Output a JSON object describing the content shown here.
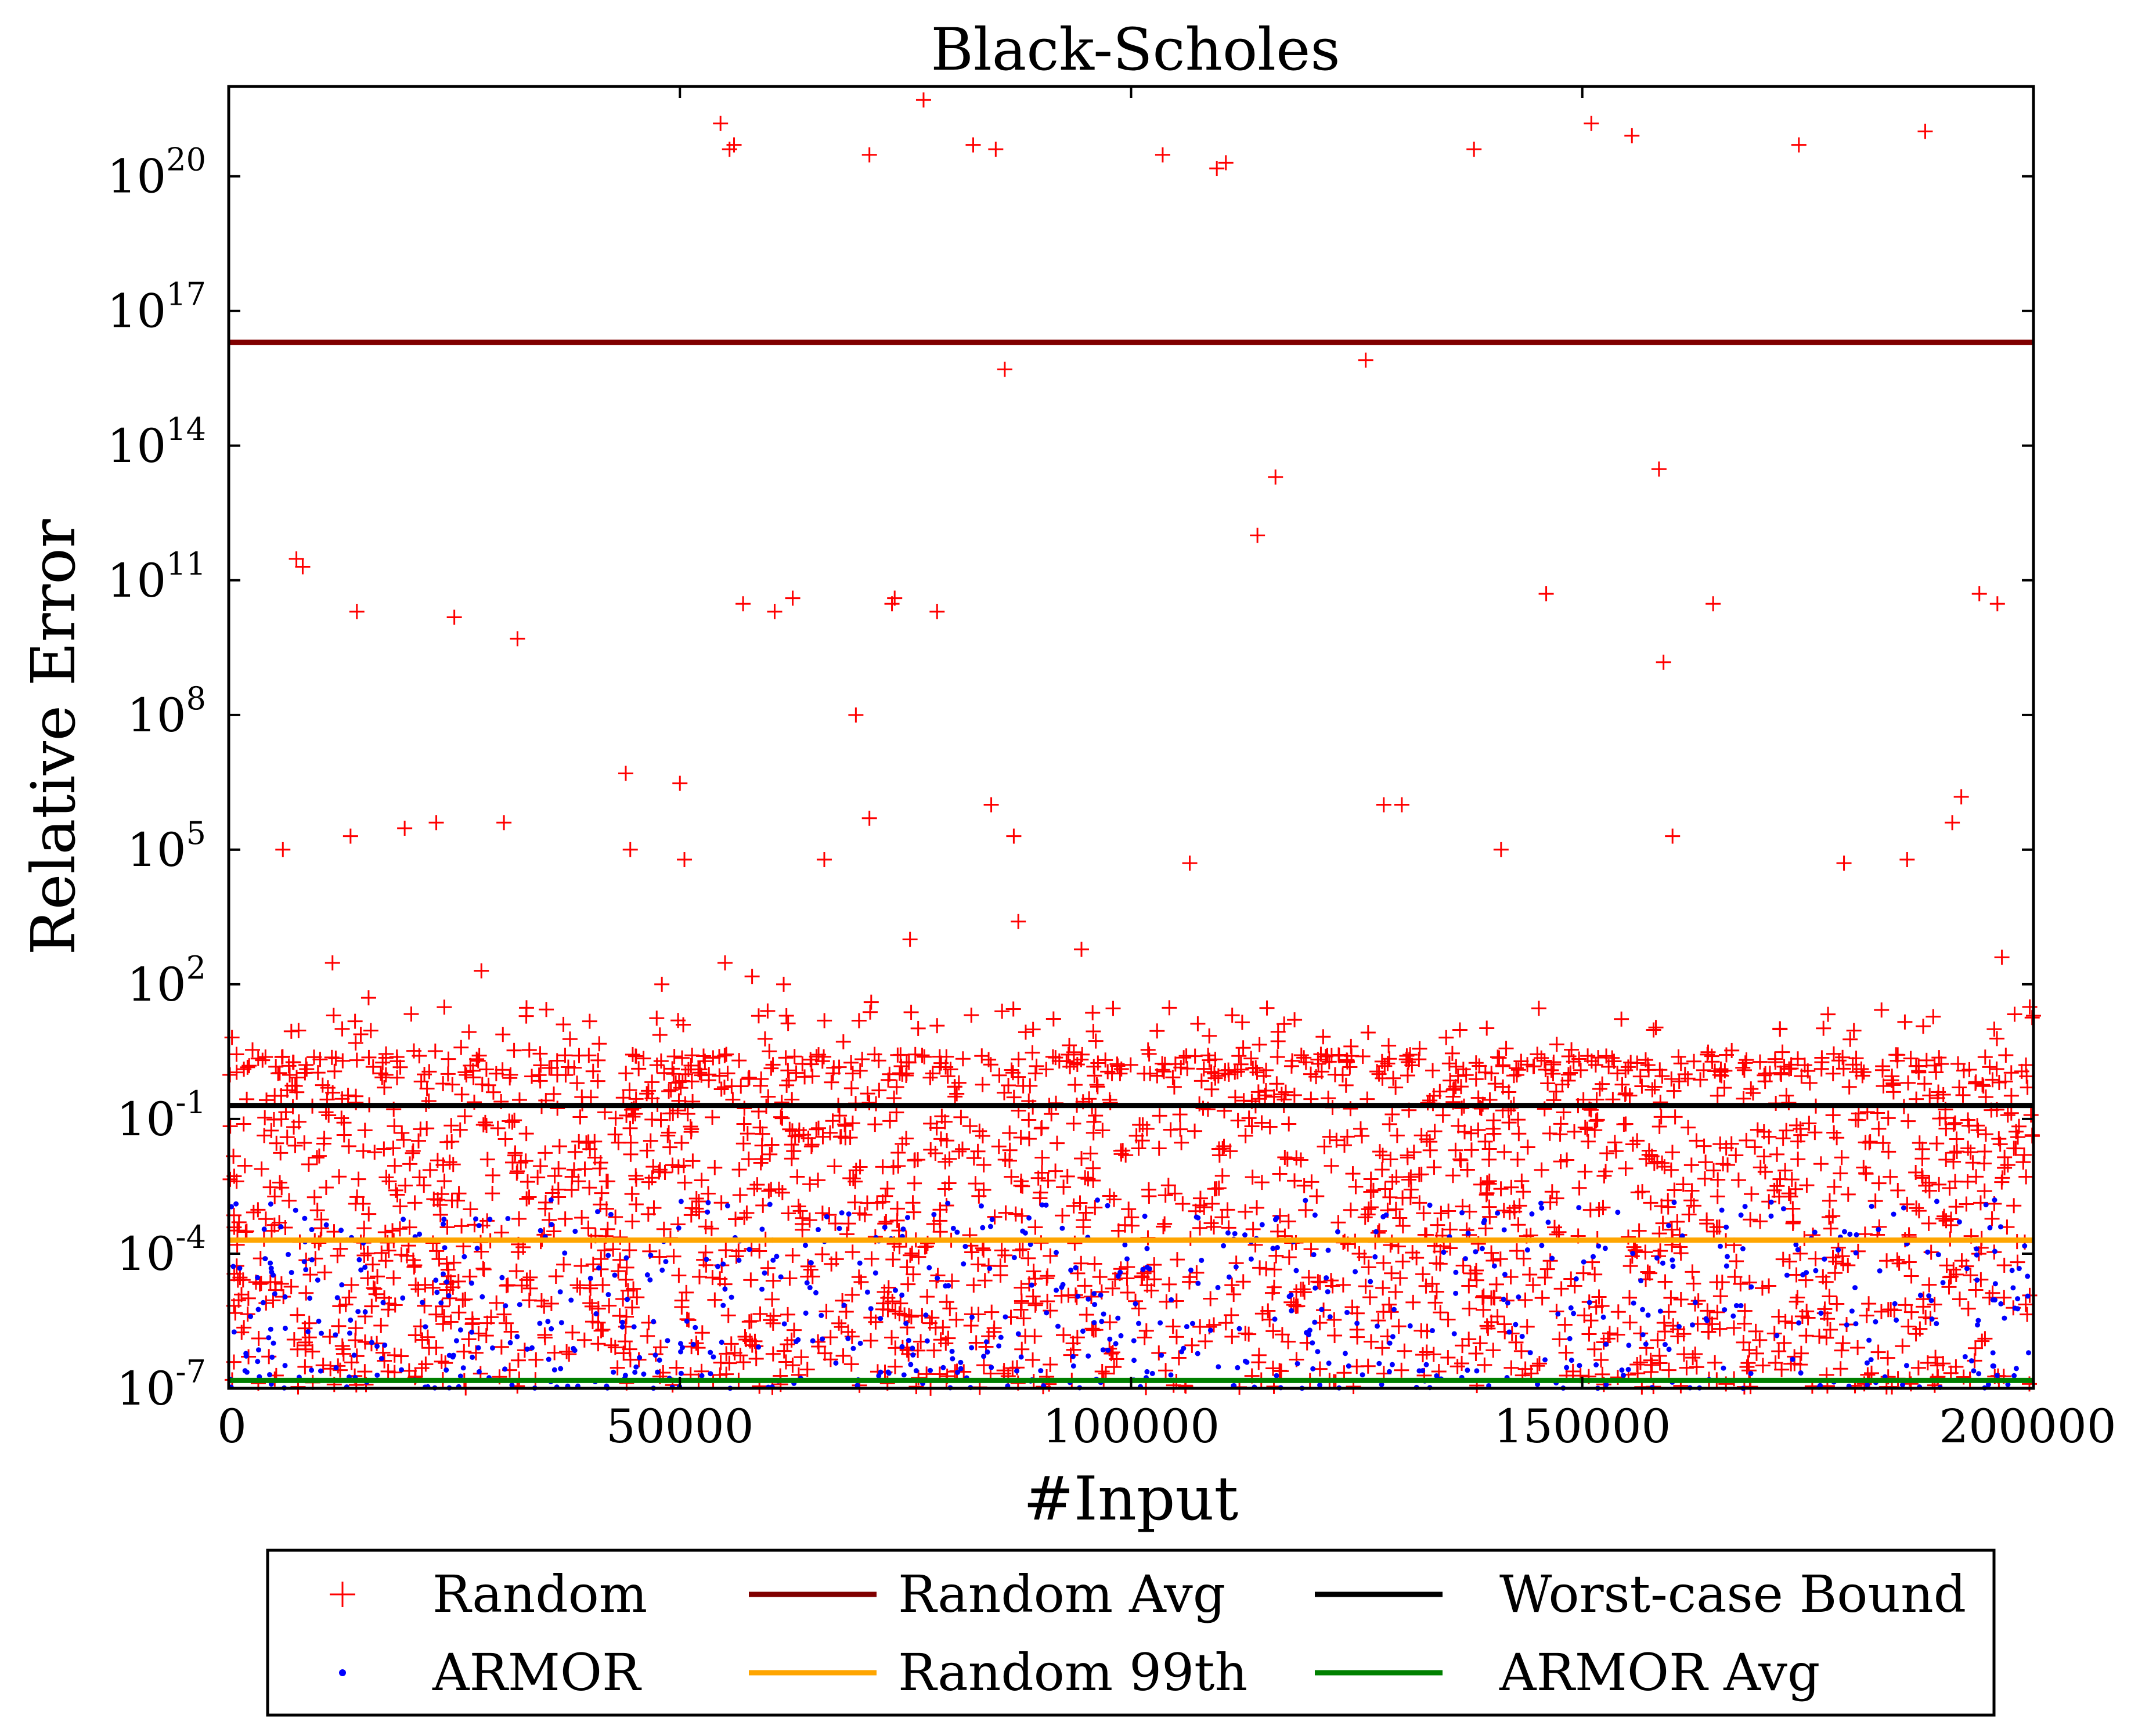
{
  "chart_data": {
    "type": "scatter",
    "title": "Black-Scholes",
    "xlabel": "#Input",
    "ylabel": "Relative Error",
    "y_scale": "log",
    "xlim": [
      0,
      200000
    ],
    "ylim_exponent": [
      -7,
      22
    ],
    "x_ticks": [
      {
        "value": 0,
        "label": "0"
      },
      {
        "value": 50000,
        "label": "50000"
      },
      {
        "value": 100000,
        "label": "100000"
      },
      {
        "value": 150000,
        "label": "150000"
      },
      {
        "value": 200000,
        "label": "200000"
      }
    ],
    "y_ticks": [
      {
        "exponent": -7,
        "base": "10",
        "exp": "-7"
      },
      {
        "exponent": -4,
        "base": "10",
        "exp": "-4"
      },
      {
        "exponent": -1,
        "base": "10",
        "exp": "-1"
      },
      {
        "exponent": 2,
        "base": "10",
        "exp": "2"
      },
      {
        "exponent": 5,
        "base": "10",
        "exp": "5"
      },
      {
        "exponent": 8,
        "base": "10",
        "exp": "8"
      },
      {
        "exponent": 11,
        "base": "10",
        "exp": "11"
      },
      {
        "exponent": 14,
        "base": "10",
        "exp": "14"
      },
      {
        "exponent": 17,
        "base": "10",
        "exp": "17"
      },
      {
        "exponent": 20,
        "base": "10",
        "exp": "20"
      }
    ],
    "grid": false,
    "legend_position": "bottom, outside plot, 3 columns",
    "hlines": [
      {
        "name": "Random Avg",
        "y": 2e+16,
        "color": "#800000"
      },
      {
        "name": "Random 99th",
        "y": 0.0002,
        "color": "#ffa500"
      },
      {
        "name": "Worst-case Bound",
        "y": 0.2,
        "color": "#000000"
      },
      {
        "name": "ARMOR Avg",
        "y": 1.5e-07,
        "color": "#008000"
      }
    ],
    "series": [
      {
        "name": "Random",
        "marker": "+",
        "color": "#ff0000",
        "note": "200000 inputs; dense band from 1e-7 to 1e1, shelf at about 1",
        "outliers": [
          [
            6000,
            100000.0
          ],
          [
            7500,
            300000000000.0
          ],
          [
            8200,
            200000000000.0
          ],
          [
            11500,
            300
          ],
          [
            13500,
            200000.0
          ],
          [
            14000,
            15
          ],
          [
            14200,
            20000000000.0
          ],
          [
            15500,
            50
          ],
          [
            19500,
            300000.0
          ],
          [
            23000,
            400000.0
          ],
          [
            25000,
            15000000000.0
          ],
          [
            28000,
            200
          ],
          [
            30500,
            400000.0
          ],
          [
            32000,
            5000000000.0
          ],
          [
            33000,
            30
          ],
          [
            40000,
            15
          ],
          [
            44000,
            5000000.0
          ],
          [
            44500,
            100000.0
          ],
          [
            48000,
            100
          ],
          [
            50000,
            3000000.0
          ],
          [
            50500,
            60000.0
          ],
          [
            54500,
            1.5e+21
          ],
          [
            55000,
            300
          ],
          [
            55500,
            4e+20
          ],
          [
            56000,
            5e+20
          ],
          [
            57000,
            30000000000.0
          ],
          [
            58000,
            150
          ],
          [
            60500,
            20000000000.0
          ],
          [
            61500,
            100
          ],
          [
            61800,
            20
          ],
          [
            62500,
            40000000000.0
          ],
          [
            66000,
            60000.0
          ],
          [
            69500,
            100000000.0
          ],
          [
            71000,
            3e+20
          ],
          [
            71000,
            500000.0
          ],
          [
            71200,
            40
          ],
          [
            73500,
            30000000000.0
          ],
          [
            73800,
            40000000000.0
          ],
          [
            75500,
            1000
          ],
          [
            77000,
            5e+21
          ],
          [
            78500,
            20000000000.0
          ],
          [
            82500,
            5e+20
          ],
          [
            84500,
            1000000.0
          ],
          [
            85000,
            4e+20
          ],
          [
            86000,
            5000000000000000.0
          ],
          [
            87000,
            200000.0
          ],
          [
            87500,
            2500
          ],
          [
            94500,
            600
          ],
          [
            103500,
            3e+20
          ],
          [
            106500,
            50000.0
          ],
          [
            109500,
            1.5e+20
          ],
          [
            110500,
            2e+20
          ],
          [
            114000,
            1000000000000.0
          ],
          [
            116000,
            20000000000000.0
          ],
          [
            126000,
            8000000000000000.0
          ],
          [
            128000,
            1000000.0
          ],
          [
            130000,
            1000000.0
          ],
          [
            138000,
            4e+20
          ],
          [
            141000,
            100000.0
          ],
          [
            146000,
            50000000000.0
          ],
          [
            151000,
            1.5e+21
          ],
          [
            155500,
            8e+20
          ],
          [
            158500,
            30000000000000.0
          ],
          [
            159000,
            1500000000.0
          ],
          [
            160000,
            200000.0
          ],
          [
            164500,
            30000000000.0
          ],
          [
            174000,
            5e+20
          ],
          [
            179000,
            50000.0
          ],
          [
            186000,
            60000.0
          ],
          [
            188000,
            1e+21
          ],
          [
            191000,
            400000.0
          ],
          [
            192000,
            1500000.0
          ],
          [
            194000,
            50000000000.0
          ],
          [
            196000,
            30000000000.0
          ],
          [
            196500,
            400
          ],
          [
            200000,
            20
          ]
        ]
      },
      {
        "name": "ARMOR",
        "marker": ".",
        "color": "#0000ff",
        "note": "200000 inputs; all between 1e-7 and 2e-3"
      }
    ],
    "legend": {
      "entries": [
        {
          "label": "Random",
          "kind": "plus",
          "color": "#ff0000"
        },
        {
          "label": "ARMOR",
          "kind": "dot",
          "color": "#0000ff"
        },
        {
          "label": "Random Avg",
          "kind": "line",
          "color": "#800000"
        },
        {
          "label": "Random 99th",
          "kind": "line",
          "color": "#ffa500"
        },
        {
          "label": "Worst-case Bound",
          "kind": "line",
          "color": "#000000"
        },
        {
          "label": "ARMOR Avg",
          "kind": "line",
          "color": "#008000"
        }
      ]
    }
  }
}
